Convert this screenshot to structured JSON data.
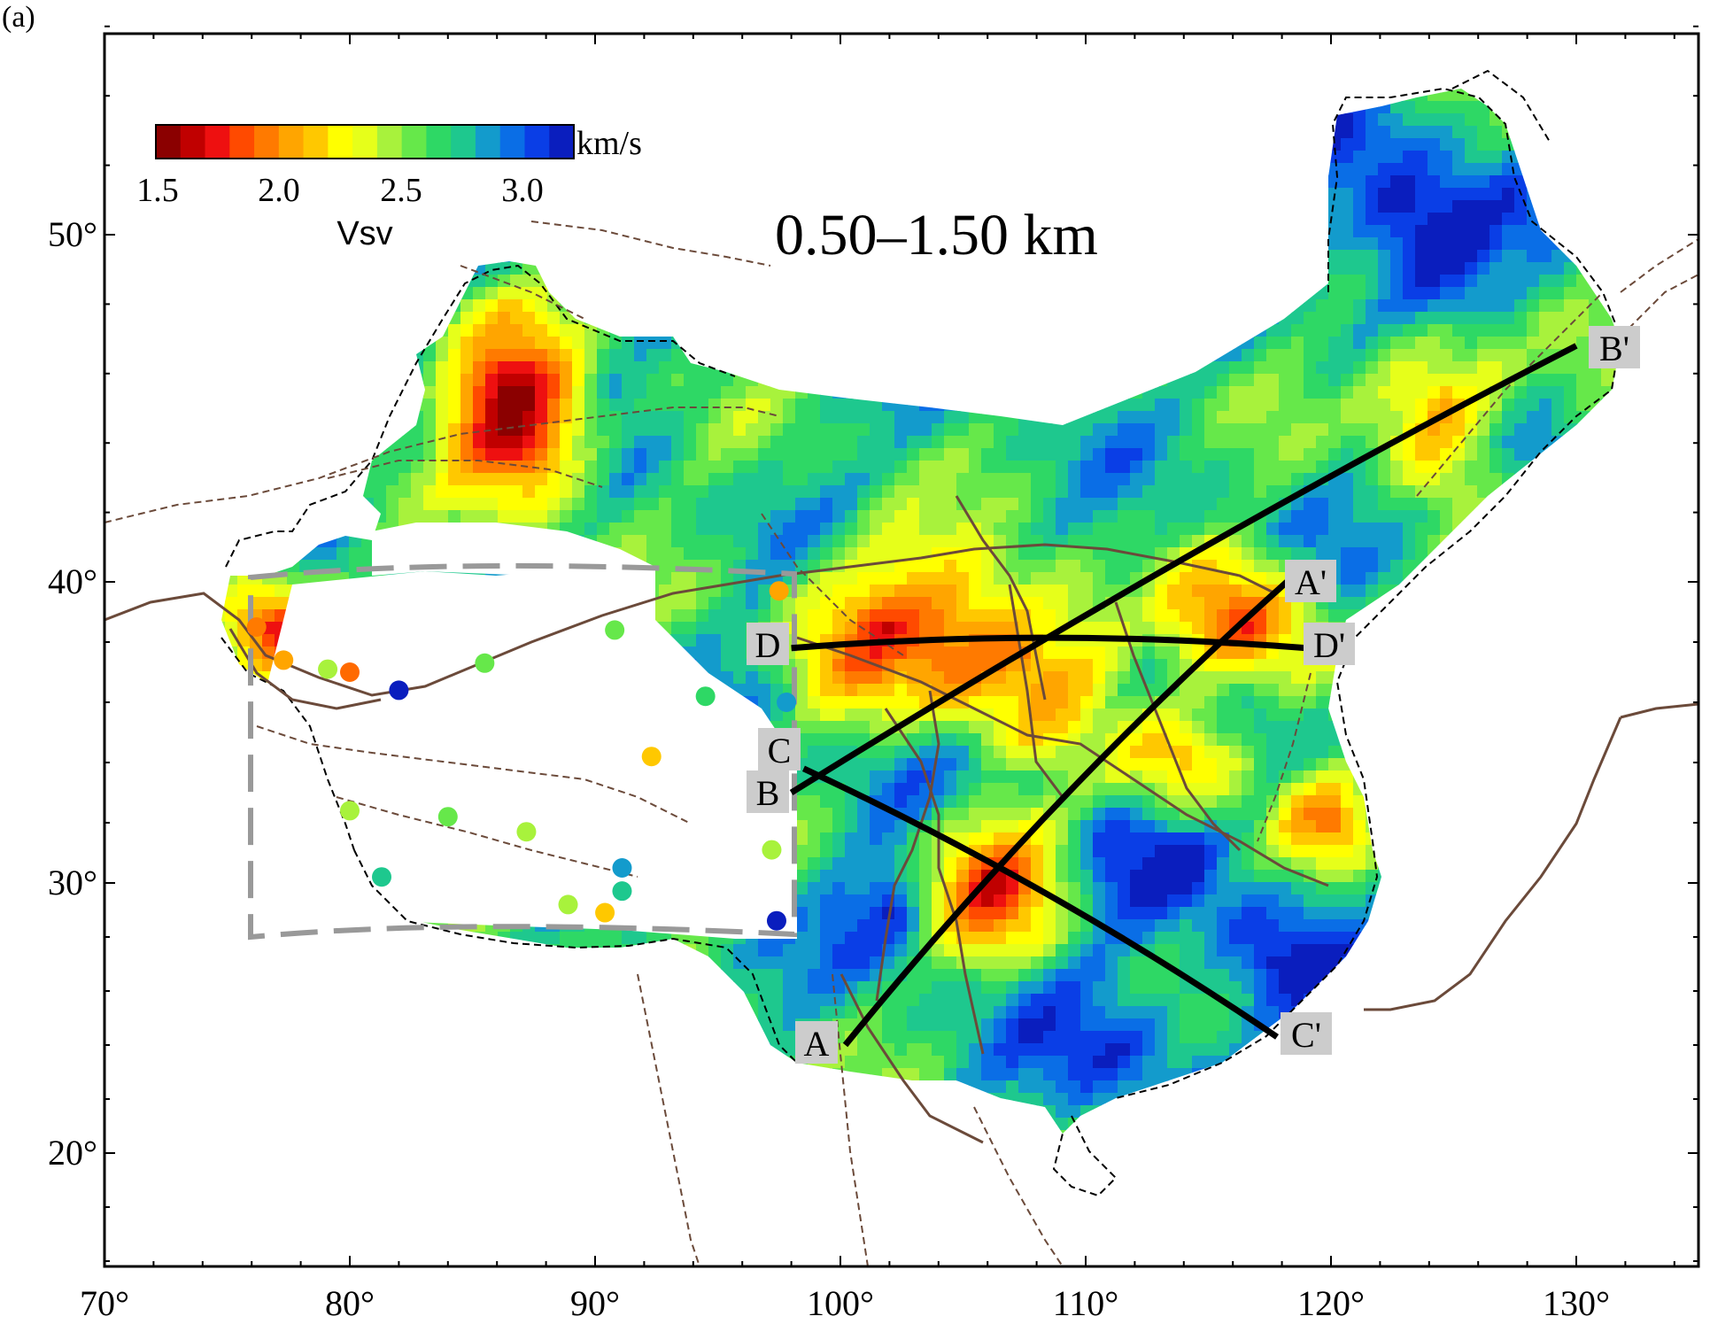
{
  "panel_label": "(a)",
  "depth_label": "0.50–1.50 km",
  "colorbar": {
    "unit": "km/s",
    "variable": "Vsv",
    "ticks": [
      "1.5",
      "2.0",
      "2.5",
      "3.0"
    ],
    "range": [
      1.5,
      3.2
    ],
    "colors": [
      "#8b0000",
      "#c00000",
      "#ee1010",
      "#ff4a00",
      "#ff7a00",
      "#ffa500",
      "#ffc800",
      "#ffff00",
      "#e6ff1a",
      "#a8f23c",
      "#66e84a",
      "#2ed865",
      "#1ec88e",
      "#139bcc",
      "#0a6ee6",
      "#0a3ee6",
      "#0a1ebe"
    ]
  },
  "axes": {
    "x_ticks": [
      "70°",
      "80°",
      "90°",
      "100°",
      "110°",
      "120°",
      "130°"
    ],
    "y_ticks": [
      "50°",
      "40°",
      "30°",
      "20°"
    ],
    "lon_range": [
      70,
      135
    ],
    "lat_range": [
      16,
      57
    ]
  },
  "profiles": [
    {
      "start": "A",
      "end": "A'",
      "from": [
        100.2,
        24.0
      ],
      "to": [
        118.2,
        40.0
      ]
    },
    {
      "start": "B",
      "end": "B'",
      "from": [
        98.0,
        33.0
      ],
      "to": [
        130.0,
        46.8
      ]
    },
    {
      "start": "C",
      "end": "C'",
      "from": [
        98.5,
        33.8
      ],
      "to": [
        117.8,
        24.3
      ]
    },
    {
      "start": "D",
      "end": "D'",
      "from": [
        98.0,
        37.8
      ],
      "to": [
        119.0,
        37.8
      ]
    }
  ],
  "stations": [
    {
      "lon": 76.2,
      "lat": 38.5,
      "color": "#ff7a00"
    },
    {
      "lon": 77.3,
      "lat": 37.4,
      "color": "#ffa500"
    },
    {
      "lon": 79.1,
      "lat": 37.1,
      "color": "#a8f23c"
    },
    {
      "lon": 80.0,
      "lat": 37.0,
      "color": "#ff6a00"
    },
    {
      "lon": 82.0,
      "lat": 36.4,
      "color": "#0a1ebe"
    },
    {
      "lon": 85.5,
      "lat": 37.3,
      "color": "#66e84a"
    },
    {
      "lon": 90.8,
      "lat": 38.4,
      "color": "#66e84a"
    },
    {
      "lon": 97.5,
      "lat": 39.7,
      "color": "#ffa500"
    },
    {
      "lon": 97.8,
      "lat": 36.0,
      "color": "#139bcc"
    },
    {
      "lon": 94.5,
      "lat": 36.2,
      "color": "#2ed865"
    },
    {
      "lon": 92.3,
      "lat": 34.2,
      "color": "#ffc800"
    },
    {
      "lon": 80.0,
      "lat": 32.4,
      "color": "#a8f23c"
    },
    {
      "lon": 84.0,
      "lat": 32.2,
      "color": "#66e84a"
    },
    {
      "lon": 87.2,
      "lat": 31.7,
      "color": "#a8f23c"
    },
    {
      "lon": 81.3,
      "lat": 30.2,
      "color": "#1ec88e"
    },
    {
      "lon": 91.1,
      "lat": 30.5,
      "color": "#139bcc"
    },
    {
      "lon": 91.1,
      "lat": 29.7,
      "color": "#1ec88e"
    },
    {
      "lon": 88.9,
      "lat": 29.2,
      "color": "#a8f23c"
    },
    {
      "lon": 90.4,
      "lat": 28.9,
      "color": "#ffc800"
    },
    {
      "lon": 97.2,
      "lat": 31.1,
      "color": "#a8f23c"
    },
    {
      "lon": 97.4,
      "lat": 28.6,
      "color": "#0a1ebe"
    }
  ]
}
